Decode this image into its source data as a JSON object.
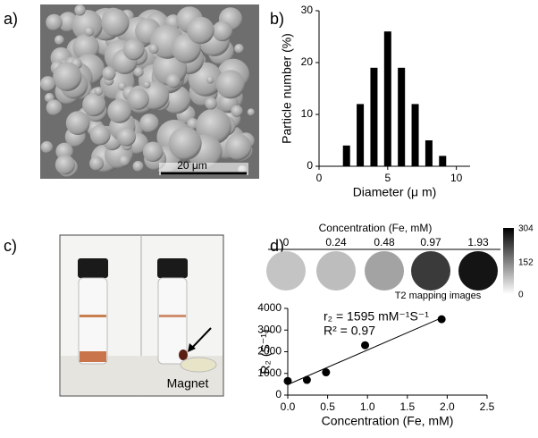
{
  "panel_labels": [
    "a)",
    "b)",
    "c)",
    "d)"
  ],
  "sem_image": {
    "scale_bar": "20 μm"
  },
  "vial_image": {
    "label": "Magnet"
  },
  "t2_mapping": {
    "header": "Concentration (Fe, mM)",
    "concentrations": [
      "0",
      "0.24",
      "0.48",
      "0.97",
      "1.93"
    ],
    "caption": "T2 mapping images",
    "colorbar_ticks": [
      "304",
      "152",
      "0"
    ]
  },
  "chart_data": [
    {
      "type": "bar",
      "x_label": "Diameter (μ m)",
      "y_label": "Particle number (%)",
      "x": [
        2,
        3,
        4,
        5,
        6,
        7,
        8,
        9
      ],
      "values": [
        4,
        12,
        19,
        26,
        19,
        12,
        5,
        2
      ],
      "color": "#000000",
      "xlim": [
        0,
        11
      ],
      "xticks": [
        0,
        5,
        10
      ],
      "ylim": [
        0,
        30
      ],
      "yticks": [
        0,
        10,
        20,
        30
      ]
    },
    {
      "type": "scatter",
      "x_label": "Concentration (Fe, mM)",
      "y_label": "R₂ (S⁻¹)",
      "annotations": [
        "r₂ = 1595 mM⁻¹S⁻¹",
        "R² = 0.97"
      ],
      "x": [
        0,
        0.24,
        0.48,
        0.97,
        1.93
      ],
      "values": [
        650,
        700,
        1050,
        2300,
        3500
      ],
      "color": "#000000",
      "fit_line": true,
      "xlim": [
        0,
        2.5
      ],
      "xticks": [
        {
          "value": 0,
          "label": "0.0"
        },
        {
          "value": 0.5,
          "label": "0.5"
        },
        {
          "value": 1,
          "label": "1.0"
        },
        {
          "value": 1.5,
          "label": "1.5"
        },
        {
          "value": 2,
          "label": "2.0"
        },
        {
          "value": 2.5,
          "label": "2.5"
        }
      ],
      "ylim": [
        0,
        4000
      ],
      "yticks": [
        0,
        1000,
        2000,
        3000,
        4000
      ]
    }
  ]
}
